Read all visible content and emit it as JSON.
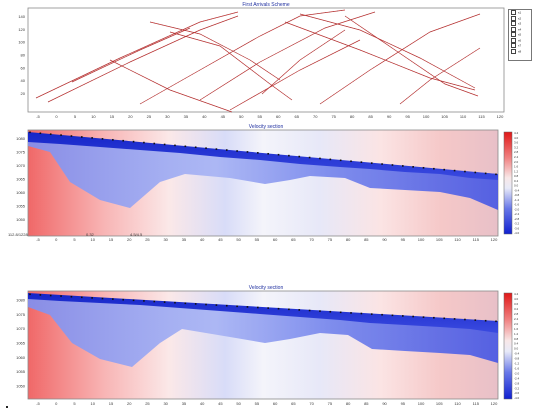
{
  "panel1": {
    "title": "First Arrivals Scheme",
    "legend": [
      "s1",
      "s2",
      "s3",
      "s4",
      "s5",
      "s6",
      "s7",
      "s8"
    ],
    "y_ticks": [
      "140",
      "120",
      "100",
      "80",
      "60",
      "40",
      "20"
    ],
    "x_ticks": [
      "-5",
      "0",
      "5",
      "10",
      "15",
      "20",
      "25",
      "30",
      "35",
      "40",
      "45",
      "50",
      "55",
      "60",
      "65",
      "70",
      "75",
      "80",
      "85",
      "90",
      "95",
      "100",
      "105",
      "110",
      "115",
      "120"
    ]
  },
  "panel2": {
    "title": "Velocity section",
    "y_ticks": [
      "1080",
      "1075",
      "1070",
      "1065",
      "1060",
      "1055",
      "1050"
    ],
    "x_ticks": [
      "-5",
      "0",
      "5",
      "10",
      "15",
      "20",
      "25",
      "30",
      "35",
      "40",
      "45",
      "50",
      "55",
      "60",
      "65",
      "70",
      "75",
      "80",
      "85",
      "90",
      "95",
      "100",
      "105",
      "110",
      "115",
      "120"
    ],
    "status": {
      "coords": "112.8/1228",
      "value": "0.32",
      "extra": "4.5/4.5"
    }
  },
  "panel3": {
    "title": "Velocity section",
    "y_ticks": [
      "1080",
      "1075",
      "1070",
      "1065",
      "1060",
      "1055",
      "1050"
    ],
    "x_ticks": [
      "-5",
      "0",
      "5",
      "10",
      "15",
      "20",
      "25",
      "30",
      "35",
      "40",
      "45",
      "50",
      "55",
      "60",
      "65",
      "70",
      "75",
      "80",
      "85",
      "90",
      "95",
      "100",
      "105",
      "110",
      "115",
      "120"
    ]
  },
  "colorbar_labels": [
    "4.4",
    "4.0",
    "3.6",
    "3.2",
    "2.8",
    "2.4",
    "2.0",
    "1.6",
    "1.2",
    "0.8",
    "0.4",
    "0.0",
    "-0.4",
    "-0.8",
    "-1.2",
    "-1.6",
    "-2.0",
    "-2.4",
    "-2.8",
    "-3.2",
    "-3.6",
    "-4.0"
  ],
  "colors": {
    "red": "#f05050",
    "blue": "#2030d8",
    "white": "#f4f4f8",
    "line": "#c03030"
  }
}
